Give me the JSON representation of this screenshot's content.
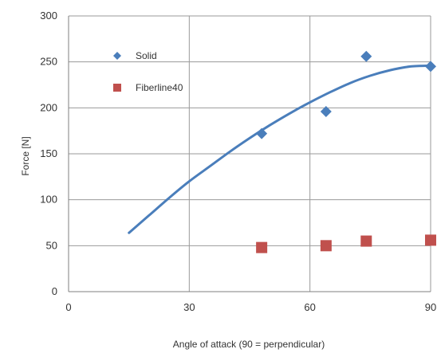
{
  "chart_data": {
    "type": "scatter",
    "xlabel": "Angle of attack (90 = perpendicular)",
    "ylabel": "Force [N]",
    "xlim": [
      0,
      90
    ],
    "ylim": [
      0,
      300
    ],
    "x_ticks": [
      0,
      30,
      60,
      90
    ],
    "y_ticks": [
      0,
      50,
      100,
      150,
      200,
      250,
      300
    ],
    "grid": true,
    "legend_position": "top-left",
    "series": [
      {
        "name": "Solid",
        "marker": "diamond",
        "color": "#4a7ebb",
        "x": [
          48,
          64,
          74,
          90
        ],
        "y": [
          172,
          196,
          256,
          245
        ]
      },
      {
        "name": "Fiberline40",
        "marker": "square",
        "color": "#c0504d",
        "x": [
          48,
          64,
          74,
          90
        ],
        "y": [
          48,
          50,
          55,
          56
        ]
      }
    ],
    "trendline": {
      "series": "Solid",
      "color": "#4a7ebb",
      "x": [
        15,
        20,
        25,
        30,
        35,
        40,
        45,
        50,
        55,
        60,
        65,
        70,
        75,
        80,
        85,
        90
      ],
      "y": [
        64,
        83,
        102,
        120,
        136,
        152,
        167,
        181,
        194,
        206,
        217,
        227,
        235,
        241,
        245,
        246
      ]
    }
  }
}
